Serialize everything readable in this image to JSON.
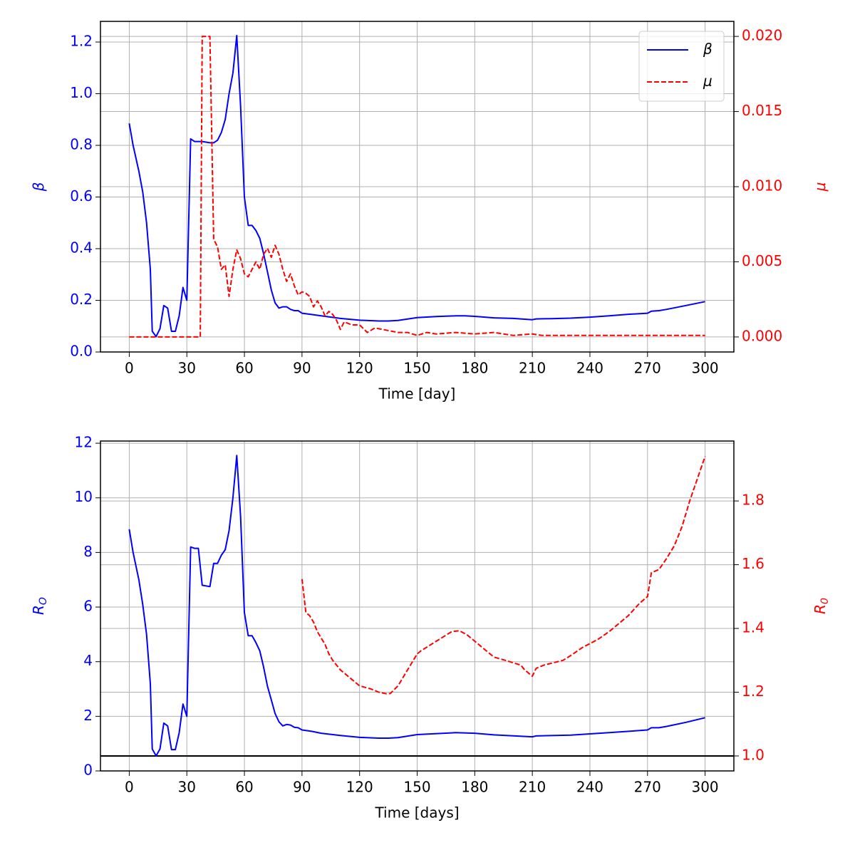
{
  "chart_data": [
    {
      "type": "line",
      "xlabel": "Time [day]",
      "ylabel": "β",
      "y2label": "μ",
      "ycolor": "#0000ff",
      "y2color": "#ff0000",
      "grid": true,
      "legend": "upper right",
      "xlim": [
        -15,
        315
      ],
      "ylim": [
        0.0,
        1.28
      ],
      "y2lim": [
        -0.001,
        0.021
      ],
      "xticks": [
        0,
        30,
        60,
        90,
        120,
        150,
        180,
        210,
        240,
        270,
        300
      ],
      "yticks": [
        {
          "value": 0.0,
          "label": "0.0"
        },
        {
          "value": 0.2,
          "label": "0.2"
        },
        {
          "value": 0.4,
          "label": "0.4"
        },
        {
          "value": 0.6,
          "label": "0.6"
        },
        {
          "value": 0.8,
          "label": "0.8"
        },
        {
          "value": 1.0,
          "label": "1.0"
        },
        {
          "value": 1.2,
          "label": "1.2"
        }
      ],
      "y2ticks": [
        {
          "value": 0.0,
          "label": "0.000"
        },
        {
          "value": 0.005,
          "label": "0.005"
        },
        {
          "value": 0.01,
          "label": "0.010"
        },
        {
          "value": 0.015,
          "label": "0.015"
        },
        {
          "value": 0.02,
          "label": "0.020"
        }
      ],
      "series": [
        {
          "name": "β",
          "color": "#0000ff",
          "style": "solid",
          "axis": "y",
          "x": [
            0,
            2,
            5,
            7,
            9,
            11,
            12,
            14,
            16,
            18,
            20,
            22,
            24,
            26,
            28,
            30,
            32,
            34,
            38,
            42,
            44,
            46,
            48,
            50,
            52,
            54,
            56,
            58,
            60,
            62,
            64,
            66,
            68,
            70,
            72,
            74,
            76,
            78,
            80,
            82,
            84,
            86,
            88,
            90,
            95,
            100,
            110,
            120,
            130,
            135,
            140,
            150,
            160,
            170,
            175,
            180,
            190,
            200,
            210,
            212,
            220,
            230,
            240,
            250,
            260,
            270,
            272,
            276,
            280,
            290,
            300
          ],
          "values": [
            0.885,
            0.8,
            0.7,
            0.62,
            0.5,
            0.32,
            0.08,
            0.06,
            0.09,
            0.18,
            0.17,
            0.08,
            0.08,
            0.14,
            0.25,
            0.2,
            0.825,
            0.815,
            0.815,
            0.81,
            0.81,
            0.82,
            0.85,
            0.9,
            1.0,
            1.08,
            1.225,
            0.95,
            0.6,
            0.49,
            0.49,
            0.47,
            0.44,
            0.38,
            0.31,
            0.24,
            0.19,
            0.17,
            0.175,
            0.175,
            0.165,
            0.16,
            0.16,
            0.15,
            0.145,
            0.14,
            0.13,
            0.123,
            0.12,
            0.12,
            0.122,
            0.133,
            0.137,
            0.14,
            0.14,
            0.138,
            0.132,
            0.13,
            0.125,
            0.128,
            0.129,
            0.131,
            0.135,
            0.14,
            0.146,
            0.15,
            0.158,
            0.16,
            0.165,
            0.18,
            0.195
          ]
        },
        {
          "name": "μ",
          "color": "#ff0000",
          "style": "dashed",
          "axis": "y2",
          "x": [
            0,
            37,
            38,
            42,
            44,
            46,
            48,
            50,
            52,
            54,
            56,
            58,
            60,
            62,
            64,
            66,
            68,
            70,
            72,
            74,
            76,
            78,
            80,
            82,
            84,
            86,
            88,
            90,
            92,
            94,
            96,
            98,
            100,
            102,
            104,
            106,
            108,
            110,
            112,
            116,
            120,
            124,
            128,
            132,
            136,
            140,
            145,
            150,
            155,
            160,
            170,
            180,
            190,
            200,
            210,
            215,
            225,
            240,
            260,
            270,
            280,
            290,
            300
          ],
          "values": [
            0.0,
            0.0,
            0.02,
            0.02,
            0.0065,
            0.006,
            0.0045,
            0.0048,
            0.0027,
            0.0045,
            0.0058,
            0.0052,
            0.0042,
            0.004,
            0.0045,
            0.005,
            0.0045,
            0.0055,
            0.0059,
            0.0053,
            0.0061,
            0.0055,
            0.0045,
            0.0037,
            0.0042,
            0.0034,
            0.0028,
            0.003,
            0.0029,
            0.0027,
            0.002,
            0.0024,
            0.002,
            0.0014,
            0.0017,
            0.0015,
            0.0011,
            0.0005,
            0.001,
            0.0008,
            0.0008,
            0.0003,
            0.0006,
            0.0005,
            0.0004,
            0.0003,
            0.0003,
            0.0001,
            0.0003,
            0.0002,
            0.0003,
            0.0002,
            0.0003,
            0.0001,
            0.0002,
            0.0001,
            0.0001,
            0.0001,
            0.0001,
            0.0001,
            0.0001,
            0.0001,
            0.0001
          ]
        }
      ]
    },
    {
      "type": "line",
      "xlabel": "Time [days]",
      "ylabel": "R",
      "ylabel_sub": "O",
      "y2label": "R",
      "y2label_sub": "0",
      "ycolor": "#0000ff",
      "y2color": "#ff0000",
      "grid": true,
      "xlim": [
        -15,
        315
      ],
      "ylim": [
        0,
        12.08
      ],
      "y2lim": [
        0.953,
        1.988
      ],
      "xticks": [
        0,
        30,
        60,
        90,
        120,
        150,
        180,
        210,
        240,
        270,
        300
      ],
      "yticks": [
        0,
        2,
        4,
        6,
        8,
        10,
        12
      ],
      "y2ticks": [
        {
          "value": 1.0,
          "label": "1.0"
        },
        {
          "value": 1.2,
          "label": "1.2"
        },
        {
          "value": 1.4,
          "label": "1.4"
        },
        {
          "value": 1.6,
          "label": "1.6"
        },
        {
          "value": 1.8,
          "label": "1.8"
        }
      ],
      "reference_line": {
        "value": 1,
        "axis": "y2",
        "color": "#000000"
      },
      "series": [
        {
          "color": "#0000ff",
          "style": "solid",
          "axis": "y",
          "x": [
            0,
            2,
            5,
            7,
            9,
            11,
            12,
            14,
            16,
            18,
            20,
            22,
            24,
            26,
            28,
            30,
            32,
            34,
            36,
            38,
            42,
            44,
            46,
            48,
            50,
            52,
            54,
            56,
            58,
            60,
            62,
            64,
            66,
            68,
            70,
            72,
            74,
            76,
            78,
            80,
            82,
            84,
            86,
            88,
            90,
            95,
            100,
            110,
            120,
            130,
            135,
            140,
            150,
            170,
            180,
            190,
            210,
            212,
            230,
            250,
            270,
            272,
            276,
            280,
            290,
            300
          ],
          "values": [
            8.85,
            8.0,
            7.0,
            6.1,
            5.0,
            3.2,
            0.8,
            0.55,
            0.8,
            1.75,
            1.65,
            0.78,
            0.78,
            1.4,
            2.45,
            2.0,
            8.2,
            8.15,
            8.15,
            6.8,
            6.75,
            7.6,
            7.6,
            7.9,
            8.1,
            8.8,
            10.0,
            11.55,
            9.3,
            5.8,
            4.95,
            4.95,
            4.7,
            4.4,
            3.8,
            3.1,
            2.6,
            2.1,
            1.8,
            1.65,
            1.7,
            1.68,
            1.6,
            1.58,
            1.5,
            1.45,
            1.38,
            1.3,
            1.23,
            1.2,
            1.2,
            1.22,
            1.33,
            1.4,
            1.38,
            1.32,
            1.25,
            1.28,
            1.31,
            1.4,
            1.5,
            1.58,
            1.58,
            1.63,
            1.78,
            1.95
          ]
        },
        {
          "color": "#ff0000",
          "style": "dashed",
          "axis": "y2",
          "x": [
            90,
            92,
            94,
            96,
            98,
            100,
            102,
            104,
            106,
            110,
            114,
            118,
            120,
            126,
            130,
            134,
            136,
            140,
            144,
            148,
            150,
            152,
            156,
            160,
            164,
            168,
            172,
            176,
            180,
            186,
            190,
            196,
            204,
            206,
            210,
            212,
            216,
            226,
            230,
            236,
            244,
            250,
            260,
            266,
            270,
            272,
            276,
            280,
            284,
            288,
            292,
            296,
            300
          ],
          "values": [
            1.555,
            1.45,
            1.44,
            1.42,
            1.39,
            1.37,
            1.35,
            1.32,
            1.3,
            1.27,
            1.25,
            1.23,
            1.22,
            1.21,
            1.2,
            1.195,
            1.196,
            1.22,
            1.26,
            1.3,
            1.32,
            1.33,
            1.345,
            1.36,
            1.375,
            1.39,
            1.393,
            1.38,
            1.36,
            1.33,
            1.31,
            1.3,
            1.285,
            1.27,
            1.25,
            1.275,
            1.285,
            1.3,
            1.315,
            1.34,
            1.365,
            1.39,
            1.44,
            1.48,
            1.5,
            1.575,
            1.585,
            1.62,
            1.66,
            1.72,
            1.8,
            1.87,
            1.94
          ]
        }
      ]
    }
  ]
}
